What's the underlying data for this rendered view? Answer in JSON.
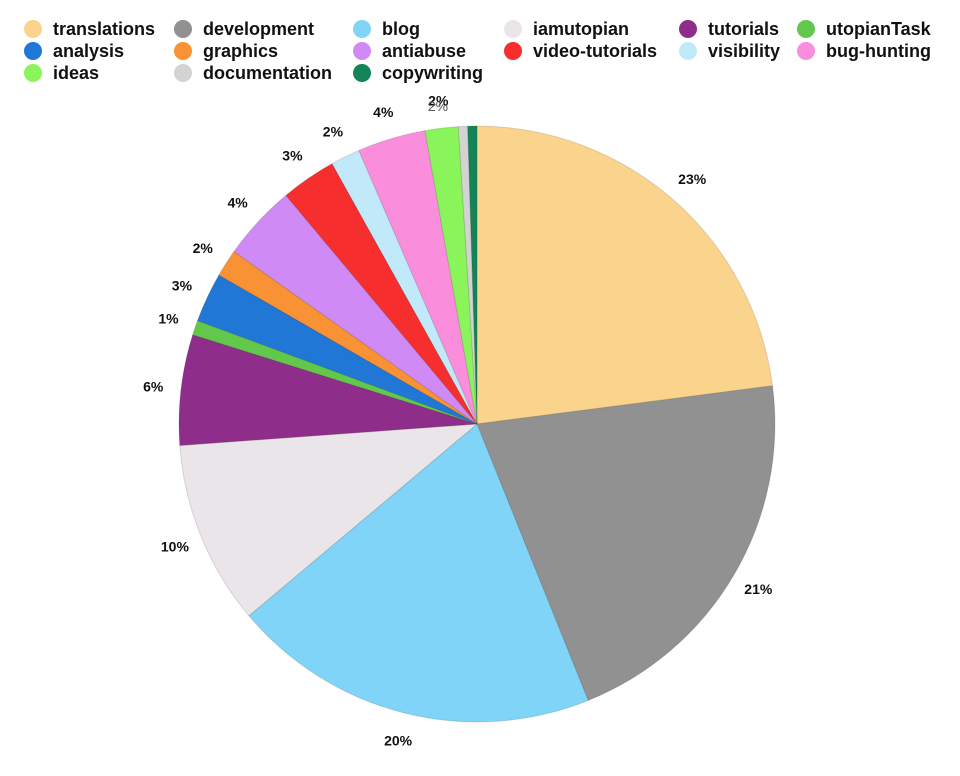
{
  "chart_data": {
    "type": "pie",
    "slices": [
      {
        "name": "translations",
        "value": 23,
        "color": "#FAD38C",
        "label": "23%"
      },
      {
        "name": "development",
        "value": 21,
        "color": "#919191",
        "label": "21%"
      },
      {
        "name": "blog",
        "value": 20,
        "color": "#80D4F7",
        "label": "20%"
      },
      {
        "name": "iamutopian",
        "value": 10,
        "color": "#E9E5E8",
        "label": "10%"
      },
      {
        "name": "tutorials",
        "value": 6,
        "color": "#8E2E8A",
        "label": "6%"
      },
      {
        "name": "utopianTask",
        "value": 0.8,
        "color": "#62C84B",
        "label": "1%"
      },
      {
        "name": "analysis",
        "value": 2.7,
        "color": "#2077D5",
        "label": "3%"
      },
      {
        "name": "graphics",
        "value": 1.5,
        "color": "#F99234",
        "label": "2%"
      },
      {
        "name": "antiabuse",
        "value": 4.1,
        "color": "#D08AF5",
        "label": "4%"
      },
      {
        "name": "video-tutorials",
        "value": 3,
        "color": "#F62E2E",
        "label": "3%"
      },
      {
        "name": "visibility",
        "value": 1.6,
        "color": "#C2E9FA",
        "label": "2%"
      },
      {
        "name": "bug-hunting",
        "value": 3.7,
        "color": "#FB8EDC",
        "label": "4%"
      },
      {
        "name": "ideas",
        "value": 1.8,
        "color": "#8AF45B",
        "label": "2%"
      },
      {
        "name": "documentation",
        "value": 0.5,
        "color": "#D3D3D3",
        "label": ""
      },
      {
        "name": "copywriting",
        "value": 0.5,
        "color": "#148357",
        "label": ""
      }
    ],
    "legend": {
      "placement": "top",
      "items": [
        {
          "name": "translations",
          "color": "#FAD38C"
        },
        {
          "name": "development",
          "color": "#919191"
        },
        {
          "name": "blog",
          "color": "#80D4F7"
        },
        {
          "name": "iamutopian",
          "color": "#E9E5E8"
        },
        {
          "name": "tutorials",
          "color": "#8E2E8A"
        },
        {
          "name": "utopianTask",
          "color": "#62C84B"
        },
        {
          "name": "analysis",
          "color": "#2077D5"
        },
        {
          "name": "graphics",
          "color": "#F99234"
        },
        {
          "name": "antiabuse",
          "color": "#D08AF5"
        },
        {
          "name": "video-tutorials",
          "color": "#F62E2E"
        },
        {
          "name": "visibility",
          "color": "#C2E9FA"
        },
        {
          "name": "bug-hunting",
          "color": "#FB8EDC"
        },
        {
          "name": "ideas",
          "color": "#8AF45B"
        },
        {
          "name": "documentation",
          "color": "#D3D3D3"
        },
        {
          "name": "copywriting",
          "color": "#148357"
        }
      ]
    },
    "extra_labels": [
      {
        "text": "2%",
        "near": "top"
      }
    ]
  }
}
